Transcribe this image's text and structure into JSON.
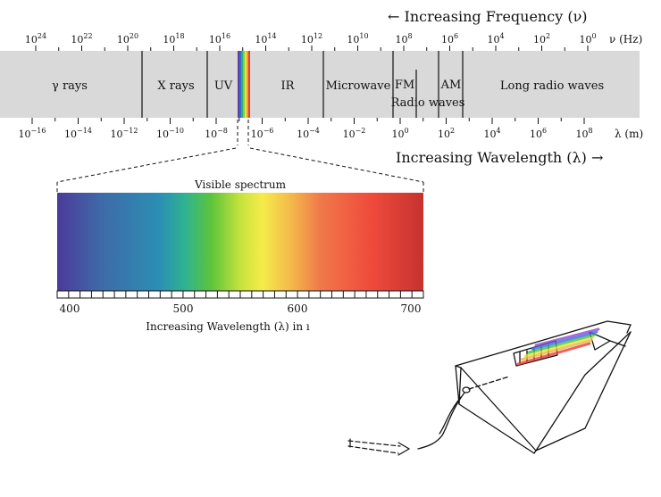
{
  "frequency_axis": {
    "title": "← Increasing Frequency (ν)",
    "unit": "ν (Hz)",
    "ticks": [
      {
        "base": "10",
        "exp": "24"
      },
      {
        "base": "10",
        "exp": "22"
      },
      {
        "base": "10",
        "exp": "20"
      },
      {
        "base": "10",
        "exp": "18"
      },
      {
        "base": "10",
        "exp": "16"
      },
      {
        "base": "10",
        "exp": "14"
      },
      {
        "base": "10",
        "exp": "12"
      },
      {
        "base": "10",
        "exp": "10"
      },
      {
        "base": "10",
        "exp": "8"
      },
      {
        "base": "10",
        "exp": "6"
      },
      {
        "base": "10",
        "exp": "4"
      },
      {
        "base": "10",
        "exp": "2"
      },
      {
        "base": "10",
        "exp": "0"
      }
    ]
  },
  "wavelength_axis": {
    "title": "Increasing Wavelength (λ) →",
    "unit": "λ (m)",
    "ticks": [
      {
        "base": "10",
        "exp": "−16"
      },
      {
        "base": "10",
        "exp": "−14"
      },
      {
        "base": "10",
        "exp": "−12"
      },
      {
        "base": "10",
        "exp": "−10"
      },
      {
        "base": "10",
        "exp": "−8"
      },
      {
        "base": "10",
        "exp": "−6"
      },
      {
        "base": "10",
        "exp": "−4"
      },
      {
        "base": "10",
        "exp": "−2"
      },
      {
        "base": "10",
        "exp": "0"
      },
      {
        "base": "10",
        "exp": "2"
      },
      {
        "base": "10",
        "exp": "4"
      },
      {
        "base": "10",
        "exp": "6"
      },
      {
        "base": "10",
        "exp": "8"
      }
    ]
  },
  "bands": {
    "gamma": "γ rays",
    "xray": "X rays",
    "uv": "UV",
    "ir": "IR",
    "microwave": "Microwave",
    "fm": "FM",
    "am": "AM",
    "radio": "Radio waves",
    "long_radio": "Long radio waves"
  },
  "visible": {
    "title": "Visible spectrum",
    "axis_title": "Increasing Wavelength (λ) in ı",
    "tick_labels": [
      "400",
      "500",
      "600",
      "700"
    ]
  },
  "colors": {
    "band_fill": "#d9d9d9",
    "spectrum": [
      "#4b3a9a",
      "#3f6aa8",
      "#2b8fb4",
      "#2fb38f",
      "#5cc43c",
      "#c6e23c",
      "#f5ec4a",
      "#f3b84a",
      "#f0784a",
      "#ef4a3c",
      "#c6322f"
    ]
  }
}
